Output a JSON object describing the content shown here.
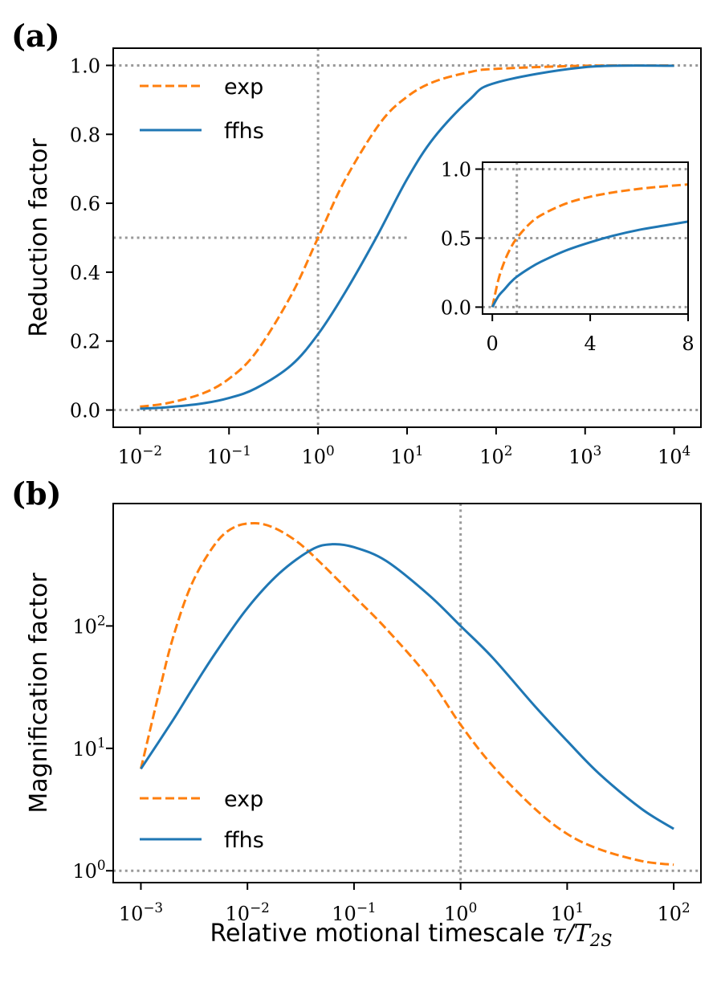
{
  "panel_labels": {
    "a": "(a)",
    "b": "(b)"
  },
  "colors": {
    "exp": "#ff7f0e",
    "ffhs": "#1f77b4",
    "reference": "#999999",
    "axes": "#000000"
  },
  "chart_data": [
    {
      "id": "a",
      "type": "line",
      "title": "",
      "xlabel": "",
      "ylabel": "Reduction factor",
      "xscale": "log",
      "yscale": "linear",
      "xlim": [
        0.005,
        20000
      ],
      "ylim": [
        -0.05,
        1.05
      ],
      "xticks": [
        0.01,
        0.1,
        1,
        10,
        100,
        1000,
        10000
      ],
      "xtick_labels": [
        [
          "10",
          "−2"
        ],
        [
          "10",
          "−1"
        ],
        [
          "10",
          "0"
        ],
        [
          "10",
          "1"
        ],
        [
          "10",
          "2"
        ],
        [
          "10",
          "3"
        ],
        [
          "10",
          "4"
        ]
      ],
      "yticks": [
        0.0,
        0.2,
        0.4,
        0.6,
        0.8,
        1.0
      ],
      "ytick_labels": [
        "0.0",
        "0.2",
        "0.4",
        "0.6",
        "0.8",
        "1.0"
      ],
      "legend": {
        "placement": "top-left",
        "entries": [
          "exp",
          "ffhs"
        ]
      },
      "reference_lines": {
        "horizontal": [
          0.0,
          0.5,
          1.0
        ],
        "vertical": [
          1
        ],
        "half_line_xmax": 10
      },
      "series": [
        {
          "name": "exp",
          "style": "dashed",
          "x": [
            0.01,
            0.02,
            0.05,
            0.1,
            0.2,
            0.5,
            1,
            2,
            5,
            10,
            20,
            50,
            100,
            1000,
            10000
          ],
          "y": [
            0.0099,
            0.0196,
            0.0476,
            0.0909,
            0.1667,
            0.3333,
            0.5,
            0.6667,
            0.8333,
            0.9091,
            0.9524,
            0.9804,
            0.9901,
            0.999,
            0.9999
          ]
        },
        {
          "name": "ffhs",
          "style": "solid",
          "x": [
            0.01,
            0.02,
            0.05,
            0.1,
            0.2,
            0.5,
            1,
            2,
            4.5,
            10,
            20,
            50,
            100,
            1000,
            10000
          ],
          "y": [
            0.004,
            0.008,
            0.019,
            0.035,
            0.063,
            0.13,
            0.22,
            0.34,
            0.5,
            0.67,
            0.79,
            0.9,
            0.95,
            0.995,
            0.999
          ]
        }
      ],
      "inset": {
        "type": "line",
        "xscale": "linear",
        "yscale": "linear",
        "xlim": [
          -0.4,
          8
        ],
        "ylim": [
          -0.05,
          1.05
        ],
        "xticks": [
          0,
          4,
          8
        ],
        "xtick_labels": [
          "0",
          "4",
          "8"
        ],
        "yticks": [
          0.0,
          0.5,
          1.0
        ],
        "ytick_labels": [
          "0.0",
          "0.5",
          "1.0"
        ],
        "reference_lines": {
          "horizontal": [
            0.0,
            0.5,
            1.0
          ],
          "vertical": [
            1
          ]
        },
        "series": [
          {
            "name": "exp",
            "style": "dashed",
            "x": [
              0,
              0.25,
              0.5,
              0.75,
              1,
              1.5,
              2,
              3,
              4,
              5,
              6,
              7,
              8
            ],
            "y": [
              0,
              0.2,
              0.333,
              0.429,
              0.5,
              0.6,
              0.667,
              0.75,
              0.8,
              0.833,
              0.857,
              0.875,
              0.889
            ]
          },
          {
            "name": "ffhs",
            "style": "solid",
            "x": [
              0,
              0.25,
              0.5,
              0.75,
              1,
              1.5,
              2,
              3,
              4,
              5,
              6,
              7,
              8
            ],
            "y": [
              0,
              0.08,
              0.13,
              0.18,
              0.22,
              0.28,
              0.33,
              0.41,
              0.47,
              0.52,
              0.56,
              0.59,
              0.62
            ]
          }
        ]
      }
    },
    {
      "id": "b",
      "type": "line",
      "title": "",
      "xlabel": "Relative motional timescale τ/T₂S",
      "xlabel_parts": {
        "text": "Relative motional timescale ",
        "math": "τ/T",
        "sub": "2S"
      },
      "ylabel": "Magnification factor",
      "xscale": "log",
      "yscale": "log",
      "xlim": [
        0.00055,
        180
      ],
      "ylim": [
        0.8,
        1000
      ],
      "xticks": [
        0.001,
        0.01,
        0.1,
        1,
        10,
        100
      ],
      "xtick_labels": [
        [
          "10",
          "−3"
        ],
        [
          "10",
          "−2"
        ],
        [
          "10",
          "−1"
        ],
        [
          "10",
          "0"
        ],
        [
          "10",
          "1"
        ],
        [
          "10",
          "2"
        ]
      ],
      "yticks": [
        1,
        10,
        100
      ],
      "ytick_labels": [
        [
          "10",
          "0"
        ],
        [
          "10",
          "1"
        ],
        [
          "10",
          "2"
        ]
      ],
      "legend": {
        "placement": "bottom-left",
        "entries": [
          "exp",
          "ffhs"
        ]
      },
      "reference_lines": {
        "horizontal": [
          1
        ],
        "vertical": [
          1
        ]
      },
      "series": [
        {
          "name": "exp",
          "style": "dashed",
          "x": [
            0.001,
            0.0015,
            0.002,
            0.003,
            0.005,
            0.0075,
            0.0118,
            0.018,
            0.03,
            0.05,
            0.1,
            0.2,
            0.5,
            1,
            2,
            5,
            10,
            20,
            50,
            100
          ],
          "y": [
            6.8,
            30,
            80,
            220,
            470,
            640,
            690,
            630,
            480,
            320,
            175,
            95,
            38,
            15.6,
            7.2,
            3.2,
            2.0,
            1.5,
            1.2,
            1.12
          ]
        },
        {
          "name": "ffhs",
          "style": "solid",
          "x": [
            0.001,
            0.002,
            0.003,
            0.005,
            0.01,
            0.02,
            0.04,
            0.062,
            0.1,
            0.2,
            0.5,
            1,
            2,
            5,
            10,
            20,
            50,
            100
          ],
          "y": [
            6.8,
            17,
            30,
            60,
            140,
            270,
            420,
            465,
            440,
            340,
            180,
            100,
            55,
            22,
            11.5,
            6.2,
            3.2,
            2.2
          ]
        }
      ]
    }
  ]
}
